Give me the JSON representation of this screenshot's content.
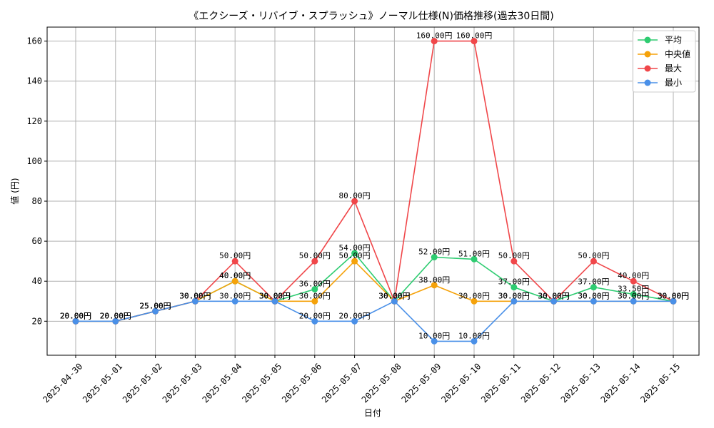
{
  "chart_data": {
    "type": "line",
    "title": "《エクシーズ・リバイブ・スプラッシュ》ノーマル仕様(N)価格推移(過去30日間)",
    "xlabel": "日付",
    "ylabel": "値 (円)",
    "ylim": [
      3,
      167
    ],
    "yticks": [
      20,
      40,
      60,
      80,
      100,
      120,
      140,
      160
    ],
    "grid": true,
    "legend_position": "top-right",
    "value_suffix": "円",
    "categories": [
      "2025-04-30",
      "2025-05-01",
      "2025-05-02",
      "2025-05-03",
      "2025-05-04",
      "2025-05-05",
      "2025-05-06",
      "2025-05-07",
      "2025-05-08",
      "2025-05-09",
      "2025-05-10",
      "2025-05-11",
      "2025-05-12",
      "2025-05-13",
      "2025-05-14",
      "2025-05-15"
    ],
    "series": [
      {
        "name": "平均",
        "color": "#2ecc71",
        "values": [
          20,
          20,
          25,
          30,
          40,
          30,
          36,
          54,
          30,
          52,
          51,
          37,
          30,
          37,
          33.5,
          30
        ]
      },
      {
        "name": "中央値",
        "color": "#f5a20a",
        "values": [
          20,
          20,
          25,
          30,
          40,
          30,
          30,
          50,
          30,
          38,
          30,
          30,
          30,
          30,
          30,
          30
        ]
      },
      {
        "name": "最大",
        "color": "#f0474a",
        "values": [
          20,
          20,
          25,
          30,
          50,
          30,
          50,
          80,
          30,
          160,
          160,
          50,
          30,
          50,
          40,
          30
        ]
      },
      {
        "name": "最小",
        "color": "#4a90e8",
        "values": [
          20,
          20,
          25,
          30,
          30,
          30,
          20,
          20,
          30,
          10,
          10,
          30,
          30,
          30,
          30,
          30
        ]
      }
    ]
  }
}
